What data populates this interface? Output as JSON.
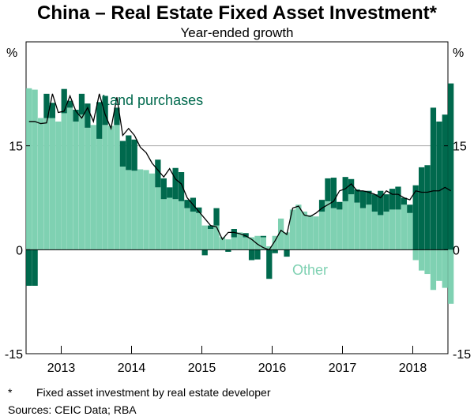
{
  "chart_data": {
    "type": "bar",
    "title": "China – Real Estate Fixed Asset Investment*",
    "subtitle": "Year-ended growth",
    "ylabel": "%",
    "ylim": [
      -15,
      30
    ],
    "yticks": [
      -15,
      0,
      15
    ],
    "gridlines": [
      15
    ],
    "x_start": 2012.5,
    "x_end": 2018.5,
    "xticks": [
      2013,
      2014,
      2015,
      2016,
      2017,
      2018
    ],
    "series": [
      {
        "name": "Other",
        "color": "#7fd1b2"
      },
      {
        "name": "Land purchases",
        "color": "#00694d"
      },
      {
        "name": "Total",
        "color": "#000000"
      }
    ],
    "annotations": [
      {
        "text": "Land purchases",
        "series": "Land purchases"
      },
      {
        "text": "Other",
        "series": "Other"
      }
    ],
    "months": [
      "2012-07",
      "2012-08",
      "2012-09",
      "2012-10",
      "2012-11",
      "2012-12",
      "2013-01",
      "2013-02",
      "2013-03",
      "2013-04",
      "2013-05",
      "2013-06",
      "2013-07",
      "2013-08",
      "2013-09",
      "2013-10",
      "2013-11",
      "2013-12",
      "2014-01",
      "2014-02",
      "2014-03",
      "2014-04",
      "2014-05",
      "2014-06",
      "2014-07",
      "2014-08",
      "2014-09",
      "2014-10",
      "2014-11",
      "2014-12",
      "2015-01",
      "2015-02",
      "2015-03",
      "2015-04",
      "2015-05",
      "2015-06",
      "2015-07",
      "2015-08",
      "2015-09",
      "2015-10",
      "2015-11",
      "2015-12",
      "2016-01",
      "2016-02",
      "2016-03",
      "2016-04",
      "2016-05",
      "2016-06",
      "2016-07",
      "2016-08",
      "2016-09",
      "2016-10",
      "2016-11",
      "2016-12",
      "2017-01",
      "2017-02",
      "2017-03",
      "2017-04",
      "2017-05",
      "2017-06",
      "2017-07",
      "2017-08",
      "2017-09",
      "2017-10",
      "2017-11",
      "2017-12",
      "2018-01",
      "2018-02",
      "2018-03",
      "2018-04",
      "2018-05",
      "2018-06",
      "2018-07"
    ],
    "other": [
      23.3,
      23.1,
      19.0,
      19.0,
      19.0,
      18.5,
      19.7,
      20.5,
      18.5,
      19.5,
      17.6,
      18.0,
      16.0,
      18.0,
      17.9,
      18.0,
      12.0,
      11.5,
      11.4,
      11.6,
      11.5,
      11.0,
      9.0,
      7.3,
      7.5,
      7.3,
      7.0,
      6.0,
      5.5,
      5.3,
      3.5,
      3.0,
      3.5,
      1.8,
      1.5,
      1.8,
      2.5,
      1.8,
      1.8,
      2.0,
      1.8,
      0.5,
      2.0,
      4.5,
      2.5,
      5.8,
      6.5,
      5.5,
      5.0,
      4.8,
      5.5,
      7.0,
      6.0,
      5.8,
      7.0,
      8.0,
      6.8,
      6.0,
      6.5,
      5.5,
      5.0,
      5.5,
      5.8,
      5.8,
      6.5,
      5.3,
      -1.5,
      -3.0,
      -3.5,
      -5.8,
      -4.5,
      -5.5,
      -7.8
    ],
    "land": [
      -5.2,
      -5.2,
      0,
      3.5,
      2.2,
      0,
      3.5,
      1.0,
      1.7,
      3.0,
      3.5,
      0,
      5.3,
      4.2,
      0,
      2.5,
      3.7,
      5.0,
      4.5,
      0,
      0,
      0,
      4.0,
      3.0,
      1.5,
      4.5,
      4.2,
      1.2,
      2.0,
      0.8,
      -0.8,
      0.5,
      2.5,
      0,
      -0.3,
      1.2,
      0,
      0.6,
      -1.5,
      -1.4,
      0.2,
      -4.2,
      -0.5,
      0,
      -1.0,
      0,
      0,
      0,
      0,
      0,
      1.7,
      3.3,
      4.4,
      1.1,
      3.5,
      2.2,
      1.9,
      2.5,
      2.0,
      2.5,
      3.5,
      2.5,
      3.0,
      3.3,
      1.0,
      1.2,
      9.3,
      11.9,
      12.2,
      20.5,
      18.5,
      19.5,
      24.0
    ],
    "total": [
      18.5,
      18.5,
      18.2,
      18.3,
      22.5,
      19.8,
      20.0,
      22.2,
      20.0,
      19.0,
      20.5,
      18.5,
      22.5,
      19.5,
      17.5,
      22.0,
      16.5,
      17.5,
      16.5,
      14.8,
      14.0,
      12.5,
      11.5,
      10.5,
      11.7,
      10.2,
      9.5,
      7.5,
      6.5,
      5.5,
      4.5,
      3.5,
      3.3,
      1.5,
      2.5,
      2.5,
      2.3,
      2.0,
      1.5,
      0.8,
      0.3,
      0,
      1.3,
      2.8,
      2.2,
      6.0,
      6.3,
      5.0,
      4.8,
      5.3,
      6.0,
      6.5,
      7.0,
      8.5,
      8.8,
      9.5,
      8.5,
      8.5,
      8.3,
      8.0,
      7.5,
      8.5,
      8.0,
      8.0,
      7.5,
      7.2,
      8.5,
      8.3,
      8.3,
      8.5,
      8.5,
      9.0,
      8.5
    ]
  },
  "axis_units": {
    "left": "%",
    "right": "%"
  },
  "footnote": {
    "marker": "*",
    "text": "Fixed asset investment by real estate developer"
  },
  "sources": "Sources: CEIC Data; RBA"
}
